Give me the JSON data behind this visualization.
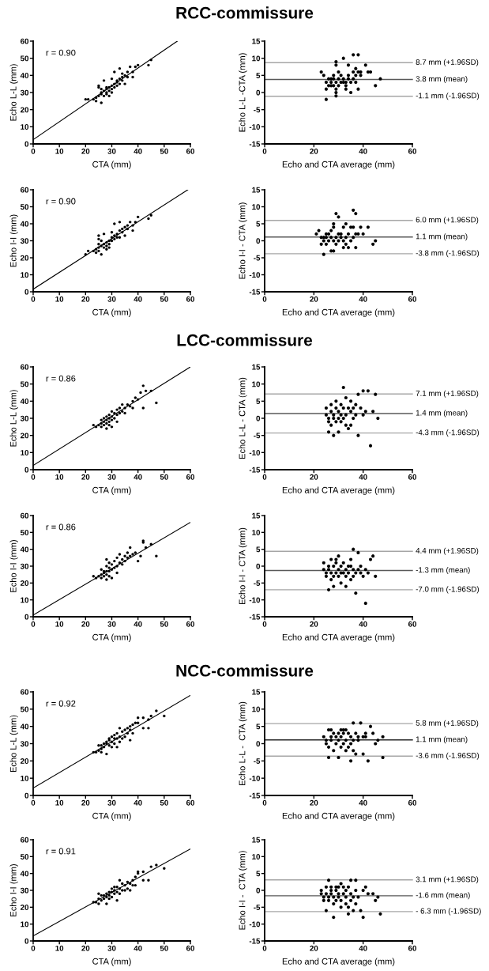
{
  "chart_data": [
    {
      "type": "scatter",
      "title": "RCC-commissure",
      "xlabel": "CTA (mm)",
      "ylabel": "Echo L-L (mm)",
      "xlim": [
        0,
        60
      ],
      "xticks": [
        0,
        10,
        20,
        30,
        40,
        50,
        60
      ],
      "ylim": [
        0,
        60
      ],
      "yticks": [
        0,
        10,
        20,
        30,
        40,
        50,
        60
      ],
      "marker": "circle",
      "annotations": [
        "r = 0.90"
      ],
      "series": [
        {
          "color": "#000000",
          "x": [
            20,
            21,
            23,
            24,
            24,
            25,
            25,
            25,
            26,
            26,
            26,
            26,
            27,
            27,
            27,
            28,
            28,
            28,
            28,
            29,
            29,
            29,
            30,
            30,
            30,
            30,
            31,
            31,
            31,
            32,
            32,
            32,
            33,
            33,
            33,
            34,
            34,
            34,
            35,
            35,
            36,
            36,
            37,
            38,
            38,
            39,
            40,
            44,
            45
          ],
          "values": [
            26,
            26,
            26,
            25,
            27,
            28,
            33,
            34,
            24,
            29,
            30,
            32,
            28,
            31,
            37,
            29,
            30,
            32,
            33,
            28,
            31,
            33,
            30,
            32,
            34,
            38,
            33,
            35,
            42,
            34,
            36,
            37,
            35,
            38,
            44,
            37,
            39,
            41,
            35,
            40,
            39,
            42,
            45,
            39,
            42,
            45,
            46,
            46,
            49
          ]
        },
        {
          "type": "line",
          "marker": "none",
          "color": "#000000",
          "x": [
            0,
            55
          ],
          "values": [
            2.5,
            60
          ]
        }
      ]
    },
    {
      "type": "scatter",
      "xlabel": "Echo and CTA average (mm)",
      "ylabel": "Echo L-L -CTA (mm)",
      "xlim": [
        0,
        60
      ],
      "xticks": [
        0,
        20,
        40,
        60
      ],
      "ylim": [
        -15,
        15
      ],
      "yticks": [
        -15,
        -10,
        -5,
        0,
        5,
        10,
        15
      ],
      "marker": "circle",
      "series": [
        {
          "color": "#000000",
          "x": [
            23,
            24,
            25,
            25,
            25,
            26,
            26,
            27,
            27,
            27,
            28,
            28,
            28,
            29,
            29,
            29,
            29,
            29,
            29,
            30,
            30,
            30,
            31,
            31,
            32,
            32,
            32,
            33,
            33,
            33,
            34,
            34,
            34,
            35,
            35,
            36,
            36,
            36,
            37,
            37,
            37,
            38,
            38,
            38,
            39,
            39,
            41,
            42,
            43,
            45,
            47
          ],
          "values": [
            6,
            5,
            1,
            3,
            -2,
            2,
            4,
            3,
            2,
            4,
            2,
            4,
            5,
            0,
            1,
            -1,
            3,
            8,
            9,
            2,
            4,
            6,
            3,
            5,
            3,
            4,
            10,
            2,
            3,
            1,
            4,
            5,
            8,
            0,
            3,
            4,
            6,
            11,
            3,
            5,
            7,
            1,
            6,
            11,
            5,
            6,
            8,
            6,
            6,
            2,
            4
          ]
        }
      ],
      "ref_lines": [
        {
          "axis": "y",
          "value": 8.7,
          "label": "8.7 mm (+1.96SD)",
          "color": "#a6a6a6"
        },
        {
          "axis": "y",
          "value": 3.8,
          "label": "3.8 mm (mean)",
          "color": "#595959"
        },
        {
          "axis": "y",
          "value": -1.1,
          "label": "-1.1 mm (-1.96SD)",
          "color": "#a6a6a6"
        }
      ]
    },
    {
      "type": "scatter",
      "xlabel": "CTA (mm)",
      "ylabel": "Echo I-I (mm)",
      "xlim": [
        0,
        60
      ],
      "xticks": [
        0,
        10,
        20,
        30,
        40,
        50,
        60
      ],
      "ylim": [
        0,
        60
      ],
      "yticks": [
        0,
        10,
        20,
        30,
        40,
        50,
        60
      ],
      "marker": "circle",
      "annotations": [
        "r = 0.90"
      ],
      "series": [
        {
          "color": "#000000",
          "x": [
            20,
            21,
            23,
            24,
            24,
            25,
            25,
            25,
            25,
            25,
            26,
            26,
            26,
            27,
            27,
            27,
            28,
            28,
            28,
            29,
            29,
            29,
            30,
            30,
            30,
            31,
            31,
            31,
            32,
            32,
            33,
            33,
            33,
            34,
            34,
            35,
            35,
            36,
            36,
            37,
            38,
            38,
            39,
            40,
            44,
            45
          ],
          "values": [
            22,
            24,
            24,
            23,
            25,
            24,
            26,
            28,
            31,
            33,
            22,
            27,
            30,
            26,
            28,
            34,
            25,
            27,
            29,
            26,
            28,
            30,
            30,
            32,
            35,
            31,
            33,
            40,
            32,
            34,
            32,
            36,
            41,
            35,
            37,
            33,
            38,
            37,
            39,
            41,
            36,
            39,
            41,
            44,
            43,
            45
          ]
        },
        {
          "type": "line",
          "marker": "none",
          "color": "#000000",
          "x": [
            0,
            59
          ],
          "values": [
            1.5,
            60
          ]
        }
      ]
    },
    {
      "type": "scatter",
      "xlabel": "Echo and CTA average (mm)",
      "ylabel": "Echo I-I - CTA (mm)",
      "xlim": [
        0,
        60
      ],
      "xticks": [
        0,
        20,
        40,
        60
      ],
      "ylim": [
        -15,
        15
      ],
      "yticks": [
        -15,
        -10,
        -5,
        0,
        5,
        10,
        15
      ],
      "marker": "circle",
      "series": [
        {
          "color": "#000000",
          "x": [
            21,
            22,
            23,
            23,
            24,
            24,
            24,
            25,
            25,
            25,
            26,
            26,
            27,
            27,
            27,
            28,
            28,
            28,
            28,
            29,
            29,
            29,
            30,
            30,
            30,
            31,
            31,
            32,
            32,
            32,
            33,
            33,
            33,
            34,
            34,
            35,
            35,
            36,
            36,
            36,
            37,
            37,
            37,
            38,
            39,
            40,
            42,
            44,
            45
          ],
          "values": [
            2,
            3,
            1,
            -1,
            0,
            -4,
            1,
            -1,
            1,
            2,
            0,
            2,
            -3,
            1,
            3,
            -3,
            0,
            4,
            5,
            -1,
            1,
            8,
            0,
            2,
            7,
            1,
            2,
            0,
            4,
            -2,
            1,
            5,
            -1,
            2,
            -2,
            0,
            4,
            9,
            4,
            1,
            -2,
            2,
            8,
            2,
            4,
            2,
            4,
            -1,
            0
          ]
        }
      ],
      "ref_lines": [
        {
          "axis": "y",
          "value": 6.0,
          "label": "6.0 mm (+1.96SD)",
          "color": "#a6a6a6"
        },
        {
          "axis": "y",
          "value": 1.1,
          "label": "1.1 mm (mean)",
          "color": "#595959"
        },
        {
          "axis": "y",
          "value": -3.8,
          "label": "-3.8 mm (-1.96SD)",
          "color": "#a6a6a6"
        }
      ]
    },
    {
      "type": "scatter",
      "title": "LCC-commissure",
      "xlabel": "CTA (mm)",
      "ylabel": "Echo L-L (mm)",
      "xlim": [
        0,
        60
      ],
      "xticks": [
        0,
        10,
        20,
        30,
        40,
        50,
        60
      ],
      "ylim": [
        0,
        60
      ],
      "yticks": [
        0,
        10,
        20,
        30,
        40,
        50,
        60
      ],
      "marker": "circle",
      "annotations": [
        "r = 0.86"
      ],
      "series": [
        {
          "color": "#000000",
          "x": [
            23,
            24,
            25,
            26,
            26,
            26,
            27,
            27,
            27,
            28,
            28,
            28,
            28,
            29,
            29,
            29,
            29,
            30,
            30,
            30,
            30,
            31,
            31,
            32,
            32,
            32,
            33,
            33,
            34,
            34,
            35,
            35,
            36,
            37,
            38,
            38,
            39,
            40,
            41,
            42,
            42,
            43,
            45,
            47
          ],
          "values": [
            26,
            25,
            26,
            25,
            27,
            29,
            26,
            28,
            30,
            24,
            27,
            29,
            31,
            26,
            28,
            30,
            32,
            25,
            29,
            31,
            34,
            30,
            33,
            28,
            32,
            35,
            33,
            36,
            34,
            38,
            33,
            36,
            38,
            37,
            40,
            36,
            42,
            41,
            45,
            49,
            36,
            46,
            46,
            39
          ]
        },
        {
          "type": "line",
          "marker": "none",
          "color": "#000000",
          "x": [
            0,
            60
          ],
          "values": [
            2.5,
            60
          ]
        }
      ]
    },
    {
      "type": "scatter",
      "xlabel": "Echo and CTA average (mm)",
      "ylabel": "Echo L-L - CTA (mm)",
      "xlim": [
        0,
        60
      ],
      "xticks": [
        0,
        20,
        40,
        60
      ],
      "ylim": [
        -15,
        15
      ],
      "yticks": [
        -15,
        -10,
        -5,
        0,
        5,
        10,
        15
      ],
      "marker": "circle",
      "series": [
        {
          "color": "#000000",
          "x": [
            25,
            25,
            26,
            26,
            26,
            27,
            27,
            27,
            28,
            28,
            28,
            29,
            29,
            29,
            30,
            30,
            30,
            31,
            31,
            31,
            32,
            32,
            32,
            33,
            33,
            33,
            34,
            34,
            35,
            35,
            35,
            36,
            36,
            37,
            37,
            38,
            38,
            39,
            40,
            40,
            41,
            42,
            43,
            44,
            45,
            46
          ],
          "values": [
            3,
            1,
            0,
            -1,
            -4,
            2,
            -2,
            4,
            -5,
            1,
            0,
            3,
            -1,
            5,
            0,
            -4,
            2,
            1,
            4,
            -1,
            9,
            3,
            0,
            -2,
            1,
            6,
            -3,
            3,
            2,
            -2,
            5,
            0,
            3,
            1,
            4,
            7,
            -5,
            3,
            8,
            1,
            2,
            8,
            -8,
            2,
            7,
            0
          ]
        }
      ],
      "ref_lines": [
        {
          "axis": "y",
          "value": 7.1,
          "label": "7.1 mm (+1.96SD)",
          "color": "#a6a6a6"
        },
        {
          "axis": "y",
          "value": 1.4,
          "label": "1.4 mm (mean)",
          "color": "#595959"
        },
        {
          "axis": "y",
          "value": -4.3,
          "label": "-4.3 mm (-1.96SD)",
          "color": "#a6a6a6"
        }
      ]
    },
    {
      "type": "scatter",
      "xlabel": "CTA (mm)",
      "ylabel": "Echo I-I (mm)",
      "xlim": [
        0,
        60
      ],
      "xticks": [
        0,
        10,
        20,
        30,
        40,
        50,
        60
      ],
      "ylim": [
        0,
        60
      ],
      "yticks": [
        0,
        10,
        20,
        30,
        40,
        50,
        60
      ],
      "marker": "circle",
      "annotations": [
        "r = 0.86"
      ],
      "series": [
        {
          "color": "#000000",
          "x": [
            23,
            24,
            25,
            26,
            26,
            26,
            27,
            27,
            27,
            28,
            28,
            28,
            28,
            28,
            29,
            29,
            29,
            29,
            30,
            30,
            30,
            31,
            31,
            32,
            32,
            32,
            33,
            33,
            34,
            34,
            35,
            35,
            36,
            36,
            37,
            37,
            38,
            39,
            40,
            41,
            42,
            42,
            43,
            45,
            47
          ],
          "values": [
            24,
            23,
            24,
            23,
            25,
            28,
            24,
            26,
            27,
            22,
            25,
            27,
            30,
            34,
            24,
            27,
            29,
            32,
            23,
            28,
            31,
            29,
            33,
            26,
            30,
            35,
            32,
            37,
            31,
            34,
            33,
            36,
            35,
            38,
            36,
            41,
            37,
            38,
            33,
            36,
            44,
            45,
            41,
            43,
            36
          ]
        },
        {
          "type": "line",
          "marker": "none",
          "color": "#000000",
          "x": [
            0,
            60
          ],
          "values": [
            1,
            56
          ]
        }
      ]
    },
    {
      "type": "scatter",
      "xlabel": "Echo and CTA average (mm)",
      "ylabel": "Echo I-I - CTA (mm)",
      "xlim": [
        0,
        60
      ],
      "xticks": [
        0,
        20,
        40,
        60
      ],
      "ylim": [
        -15,
        15
      ],
      "yticks": [
        -15,
        -10,
        -5,
        0,
        5,
        10,
        15
      ],
      "marker": "circle",
      "series": [
        {
          "color": "#000000",
          "x": [
            24,
            24,
            25,
            25,
            26,
            26,
            26,
            27,
            27,
            27,
            28,
            28,
            28,
            29,
            29,
            29,
            30,
            30,
            30,
            31,
            31,
            31,
            32,
            32,
            33,
            33,
            33,
            34,
            34,
            35,
            35,
            35,
            36,
            36,
            36,
            37,
            37,
            38,
            38,
            39,
            39,
            40,
            41,
            41,
            42,
            43,
            44,
            45
          ],
          "values": [
            1,
            -1,
            -2,
            -3,
            -1,
            0,
            -7,
            -2,
            -4,
            2,
            -3,
            0,
            -6,
            1,
            -2,
            2,
            -1,
            -3,
            3,
            -2,
            0,
            -5,
            1,
            -2,
            -6,
            -3,
            -1,
            0,
            -2,
            -4,
            2,
            0,
            -1,
            -3,
            5,
            -8,
            -2,
            -1,
            4,
            -2,
            0,
            -3,
            -1,
            -11,
            -2,
            2,
            3,
            -3
          ]
        }
      ],
      "ref_lines": [
        {
          "axis": "y",
          "value": 4.4,
          "label": "4.4 mm (+1.96SD)",
          "color": "#a6a6a6"
        },
        {
          "axis": "y",
          "value": -1.3,
          "label": "-1.3 mm (mean)",
          "color": "#595959"
        },
        {
          "axis": "y",
          "value": -7.0,
          "label": "-7.0 mm (-1.96SD)",
          "color": "#a6a6a6"
        }
      ]
    },
    {
      "type": "scatter",
      "title": "NCC-commissure",
      "xlabel": "CTA (mm)",
      "ylabel": "Echo L-L (mm)",
      "xlim": [
        0,
        60
      ],
      "xticks": [
        0,
        10,
        20,
        30,
        40,
        50,
        60
      ],
      "ylim": [
        0,
        60
      ],
      "yticks": [
        0,
        10,
        20,
        30,
        40,
        50,
        60
      ],
      "marker": "circle",
      "annotations": [
        "r = 0.92"
      ],
      "series": [
        {
          "color": "#000000",
          "x": [
            23,
            24,
            25,
            25,
            26,
            26,
            26,
            27,
            27,
            28,
            28,
            28,
            29,
            29,
            29,
            30,
            30,
            30,
            31,
            31,
            31,
            32,
            32,
            32,
            33,
            33,
            33,
            34,
            34,
            35,
            35,
            36,
            36,
            37,
            37,
            37,
            38,
            38,
            39,
            40,
            40,
            42,
            42,
            44,
            44,
            45,
            47,
            50
          ],
          "values": [
            25,
            25,
            26,
            29,
            25,
            27,
            29,
            28,
            30,
            24,
            30,
            31,
            29,
            32,
            33,
            28,
            31,
            34,
            30,
            33,
            35,
            28,
            33,
            36,
            31,
            34,
            39,
            33,
            37,
            34,
            38,
            36,
            39,
            32,
            38,
            40,
            36,
            41,
            42,
            45,
            42,
            39,
            45,
            39,
            44,
            46,
            49,
            46
          ]
        },
        {
          "type": "line",
          "marker": "none",
          "color": "#000000",
          "x": [
            0,
            60
          ],
          "values": [
            4.3,
            58
          ]
        }
      ]
    },
    {
      "type": "scatter",
      "xlabel": "Echo and CTA average (mm)",
      "ylabel": "Echo L-L -  CTA (mm)",
      "xlim": [
        0,
        60
      ],
      "xticks": [
        0,
        20,
        40,
        60
      ],
      "ylim": [
        -15,
        15
      ],
      "yticks": [
        -15,
        -10,
        -5,
        0,
        5,
        10,
        15
      ],
      "marker": "circle",
      "series": [
        {
          "color": "#000000",
          "x": [
            24,
            25,
            25,
            26,
            26,
            26,
            27,
            27,
            27,
            28,
            28,
            29,
            29,
            30,
            30,
            30,
            31,
            31,
            31,
            32,
            32,
            32,
            33,
            33,
            33,
            34,
            34,
            35,
            35,
            35,
            36,
            36,
            36,
            37,
            37,
            38,
            38,
            39,
            40,
            40,
            41,
            41,
            42,
            43,
            44,
            45,
            46,
            48,
            48
          ],
          "values": [
            2,
            1,
            0,
            -1,
            4,
            -4,
            4,
            1,
            2,
            3,
            -2,
            2,
            0,
            3,
            -4,
            1,
            4,
            -1,
            2,
            4,
            0,
            3,
            4,
            -2,
            1,
            3,
            -1,
            2,
            -5,
            0,
            6,
            1,
            -2,
            3,
            -3,
            1,
            2,
            6,
            2,
            -3,
            3,
            2,
            -5,
            5,
            3,
            0,
            1,
            2,
            -4
          ]
        }
      ],
      "ref_lines": [
        {
          "axis": "y",
          "value": 5.8,
          "label": "5.8 mm (+1.96SD)",
          "color": "#a6a6a6"
        },
        {
          "axis": "y",
          "value": 1.1,
          "label": "1.1 mm (mean)",
          "color": "#262626"
        },
        {
          "axis": "y",
          "value": -3.6,
          "label": "-3.6 mm (-1.96SD)",
          "color": "#a6a6a6"
        }
      ]
    },
    {
      "type": "scatter",
      "xlabel": "CTA (mm)",
      "ylabel": "Echo I-I (mm)",
      "xlim": [
        0,
        60
      ],
      "xticks": [
        0,
        10,
        20,
        30,
        40,
        50,
        60
      ],
      "ylim": [
        0,
        60
      ],
      "yticks": [
        0,
        10,
        20,
        30,
        40,
        50,
        60
      ],
      "marker": "circle",
      "annotations": [
        "r = 0.91"
      ],
      "series": [
        {
          "color": "#000000",
          "x": [
            23,
            24,
            25,
            25,
            25,
            26,
            26,
            27,
            27,
            28,
            28,
            28,
            29,
            29,
            29,
            30,
            30,
            30,
            31,
            31,
            31,
            32,
            32,
            32,
            33,
            33,
            33,
            34,
            34,
            35,
            35,
            36,
            36,
            37,
            37,
            38,
            38,
            39,
            39,
            40,
            40,
            42,
            42,
            44,
            45,
            47,
            50
          ],
          "values": [
            23,
            23,
            22,
            25,
            28,
            24,
            27,
            25,
            27,
            22,
            26,
            28,
            25,
            27,
            29,
            26,
            29,
            31,
            28,
            30,
            32,
            24,
            29,
            32,
            28,
            31,
            36,
            30,
            34,
            30,
            33,
            31,
            35,
            30,
            34,
            33,
            36,
            33,
            38,
            40,
            41,
            36,
            41,
            36,
            44,
            45,
            43
          ]
        },
        {
          "type": "line",
          "marker": "none",
          "color": "#000000",
          "x": [
            0,
            60
          ],
          "values": [
            3,
            54.5
          ]
        }
      ]
    },
    {
      "type": "scatter",
      "xlabel": "Echo and CTA average (mm)",
      "ylabel": "Echo I-I -  CTA (mm)",
      "xlim": [
        0,
        60
      ],
      "xticks": [
        0,
        20,
        40,
        60
      ],
      "ylim": [
        -15,
        15
      ],
      "yticks": [
        -15,
        -10,
        -5,
        0,
        5,
        10,
        15
      ],
      "marker": "circle",
      "series": [
        {
          "color": "#000000",
          "x": [
            23,
            23,
            24,
            24,
            25,
            25,
            25,
            26,
            26,
            26,
            27,
            27,
            27,
            28,
            28,
            28,
            29,
            29,
            29,
            30,
            30,
            30,
            31,
            31,
            31,
            32,
            32,
            33,
            33,
            33,
            34,
            34,
            34,
            35,
            35,
            35,
            36,
            36,
            37,
            37,
            37,
            38,
            39,
            40,
            40,
            41,
            42,
            44,
            45,
            46,
            47
          ],
          "values": [
            0,
            -1,
            -3,
            -2,
            1,
            -6,
            -1,
            -3,
            -2,
            3,
            0,
            -1,
            1,
            -4,
            -8,
            -2,
            0,
            -3,
            1,
            -1,
            -2,
            1,
            -5,
            2,
            -3,
            -1,
            1,
            -4,
            0,
            -2,
            -7,
            -5,
            1,
            -3,
            3,
            -1,
            -6,
            -2,
            0,
            3,
            -4,
            -2,
            -6,
            -8,
            0,
            1,
            -1,
            -1,
            -3,
            -2,
            -7
          ]
        }
      ],
      "ref_lines": [
        {
          "axis": "y",
          "value": 3.1,
          "label": "3.1 mm (+1.96SD)",
          "color": "#a6a6a6"
        },
        {
          "axis": "y",
          "value": -1.6,
          "label": "-1.6 mm (mean)",
          "color": "#595959"
        },
        {
          "axis": "y",
          "value": -6.3,
          "label": "- 6.3 mm (-1.96SD)",
          "color": "#a6a6a6"
        }
      ]
    }
  ]
}
